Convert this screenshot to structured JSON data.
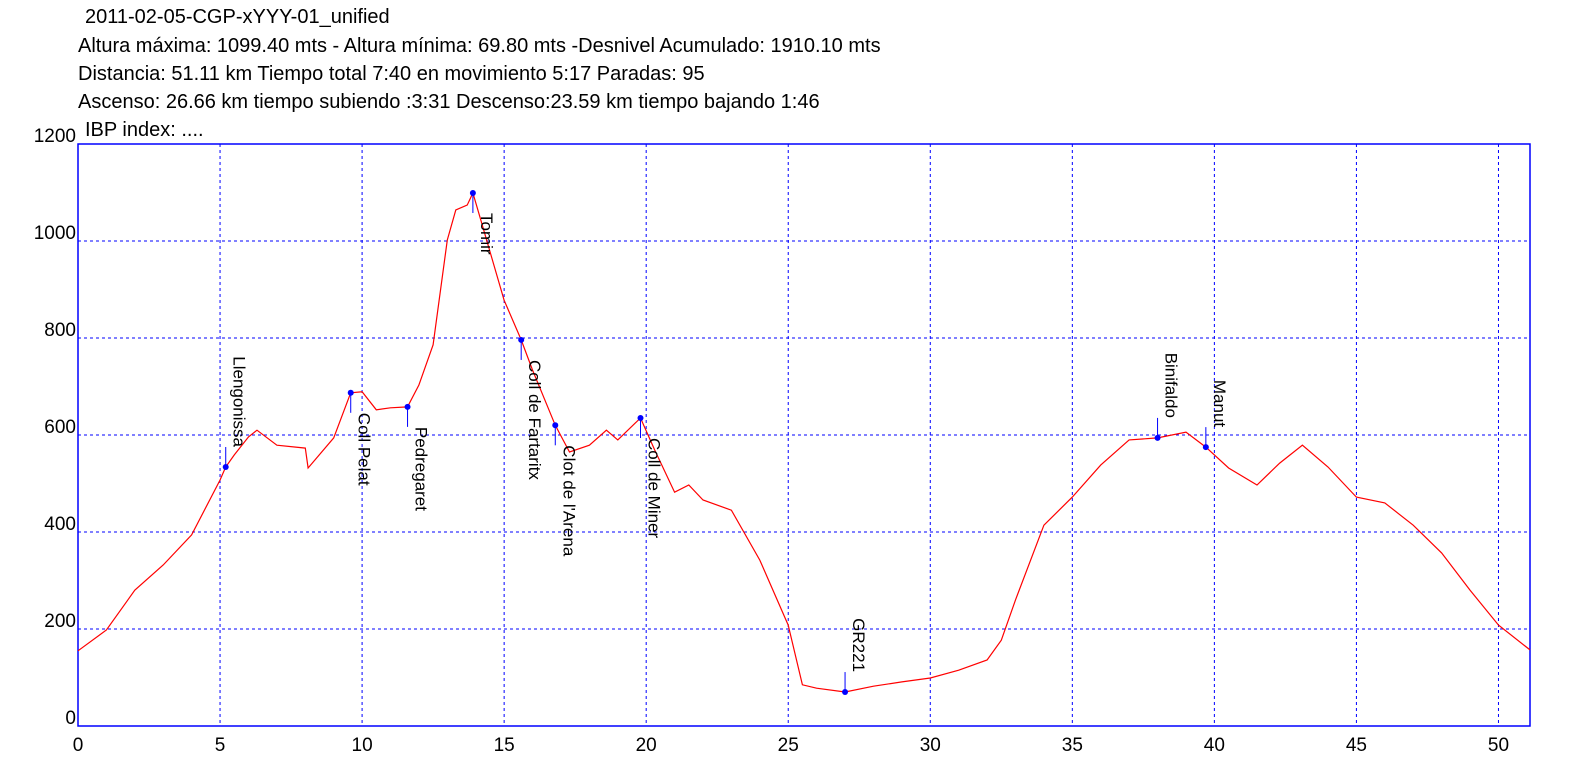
{
  "chart_data": {
    "type": "line",
    "title": "2011-02-05-CGP-xYYY-01_unified",
    "info_lines": [
      "Altura máxima: 1099.40 mts - Altura mínima: 69.80 mts -Desnivel Acumulado: 1910.10 mts",
      "Distancia: 51.11 km  Tiempo total 7:40  en movimiento 5:17 Paradas: 95",
      "Ascenso: 26.66 km  tiempo subiendo :3:31  Descenso:23.59 km tiempo bajando 1:46",
      "IBP index: ...."
    ],
    "x": [
      0,
      1,
      2,
      3,
      4,
      5,
      5.2,
      5.5,
      6,
      6.3,
      7,
      8,
      8.1,
      9,
      9.6,
      10,
      10.5,
      11,
      11.6,
      12,
      12.5,
      13,
      13.3,
      13.7,
      13.9,
      14.2,
      15,
      15.6,
      16,
      16.8,
      17.3,
      18,
      18.6,
      19,
      19.8,
      20.3,
      21,
      21.5,
      22,
      23,
      24,
      25,
      25.5,
      26,
      27,
      28,
      29,
      30,
      31,
      32,
      32.5,
      33,
      34,
      35,
      36,
      37,
      38,
      39,
      39.7,
      40.5,
      41.5,
      42.3,
      43.1,
      44,
      45,
      46,
      47,
      48,
      49,
      50,
      51.11
    ],
    "values": [
      155,
      198,
      280,
      332,
      394,
      507,
      534,
      559,
      596,
      610,
      579,
      573,
      532,
      594,
      687,
      689,
      652,
      656,
      658,
      703,
      786,
      1002,
      1064,
      1074,
      1099,
      1039,
      878,
      796,
      734,
      620,
      565,
      579,
      610,
      590,
      635,
      569,
      482,
      497,
      466,
      445,
      342,
      208,
      85,
      78,
      70,
      82,
      91,
      99,
      115,
      136,
      177,
      260,
      414,
      472,
      538,
      590,
      594,
      606,
      575,
      532,
      497,
      542,
      579,
      534,
      472,
      460,
      414,
      357,
      280,
      208,
      157
    ],
    "color": "#ff0000",
    "waypoints": [
      {
        "label": "Llengonissa",
        "x": 5.2,
        "y": 534,
        "label_side": "above"
      },
      {
        "label": "Coll Pelat",
        "x": 9.6,
        "y": 687,
        "label_side": "below"
      },
      {
        "label": "Pedregaret",
        "x": 11.6,
        "y": 658,
        "label_side": "below"
      },
      {
        "label": "Tomir",
        "x": 13.9,
        "y": 1099,
        "label_side": "below"
      },
      {
        "label": "Coll de Fartaritx",
        "x": 15.6,
        "y": 796,
        "label_side": "below"
      },
      {
        "label": "Clot de l'Arena",
        "x": 16.8,
        "y": 620,
        "label_side": "below"
      },
      {
        "label": "Coll de Miner",
        "x": 19.8,
        "y": 635,
        "label_side": "below"
      },
      {
        "label": "GR221",
        "x": 27.0,
        "y": 70,
        "label_side": "above"
      },
      {
        "label": "Binifaldo",
        "x": 38.0,
        "y": 594,
        "label_side": "above"
      },
      {
        "label": "Manut",
        "x": 39.7,
        "y": 575,
        "label_side": "above"
      }
    ],
    "waypoint_color": "#0000ff",
    "xlim": [
      0,
      51.11
    ],
    "ylim": [
      0,
      1200
    ],
    "xticks": [
      0,
      5,
      10,
      15,
      20,
      25,
      30,
      35,
      40,
      45,
      50
    ],
    "yticks": [
      0,
      200,
      400,
      600,
      800,
      1000,
      1200
    ],
    "grid": true,
    "grid_color": "#0000ff",
    "frame_color": "#0000ff"
  }
}
